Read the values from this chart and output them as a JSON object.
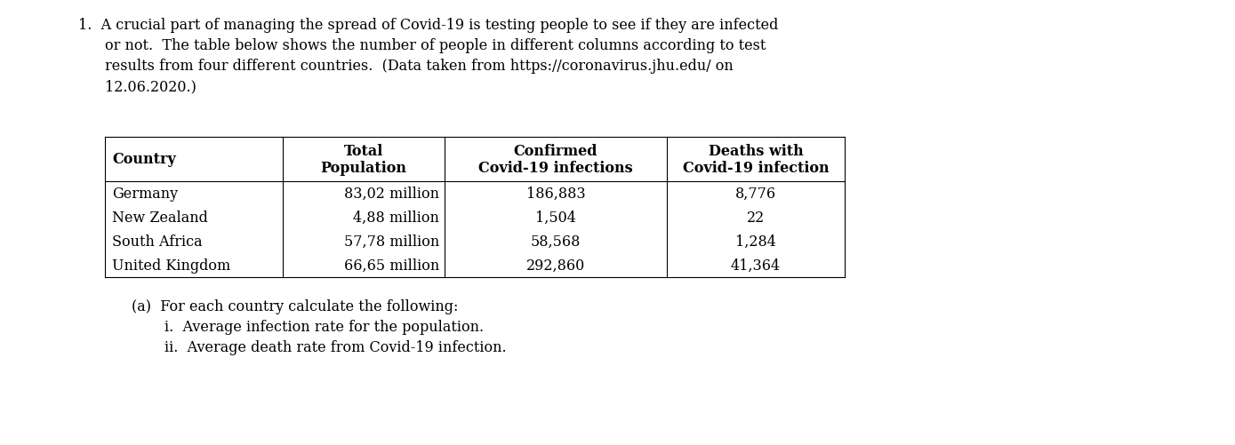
{
  "intro_line1": "1.  A crucial part of managing the spread of Covid-19 is testing people to see if they are infected",
  "intro_line2": "or not.  The table below shows the number of people in different columns according to test",
  "intro_line3": "results from four different countries.  (Data taken from https://coronavirus.jhu.edu/ on",
  "intro_line4": "12.06.2020.)",
  "table_col1_header": "Country",
  "table_col2_header_line1": "Total",
  "table_col2_header_line2": "Population",
  "table_col3_header_line1": "Confirmed",
  "table_col3_header_line2": "Covid-19 infections",
  "table_col4_header_line1": "Deaths with",
  "table_col4_header_line2": "Covid-19 infection",
  "countries": [
    "Germany",
    "New Zealand",
    "South Africa",
    "United Kingdom"
  ],
  "populations": [
    "83,02 million",
    "4,88 million",
    "57,78 million",
    "66,65 million"
  ],
  "confirmed": [
    "186,883",
    "1,504",
    "58,568",
    "292,860"
  ],
  "deaths": [
    "8,776",
    "22",
    "1,284",
    "41,364"
  ],
  "footer_text_a": "(a)  For each country calculate the following:",
  "footer_text_i": "i.  Average infection rate for the population.",
  "footer_text_ii": "ii.  Average death rate from Covid-19 infection.",
  "font_size": 11.5,
  "table_font_size": 11.5,
  "bg_color": "#ffffff",
  "text_color": "#000000"
}
